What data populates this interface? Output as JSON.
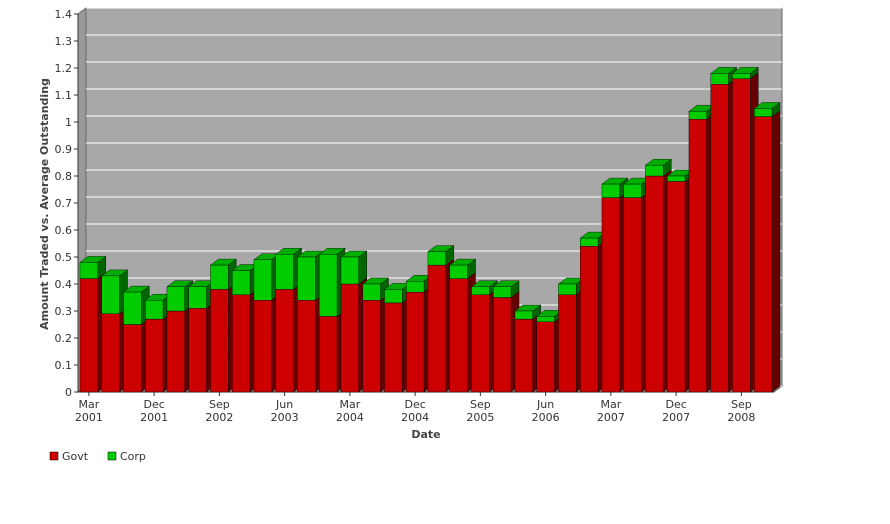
{
  "chart_data": {
    "type": "stacked_bar_3d",
    "x_label": "Date",
    "y_label": "Amount Traded vs. Average Outstanding",
    "categories": [
      [
        "Mar",
        "2001"
      ],
      null,
      null,
      [
        "Dec",
        "2001"
      ],
      null,
      null,
      [
        "Sep",
        "2002"
      ],
      null,
      null,
      [
        "Jun",
        "2003"
      ],
      null,
      null,
      [
        "Mar",
        "2004"
      ],
      null,
      null,
      [
        "Dec",
        "2004"
      ],
      null,
      null,
      [
        "Sep",
        "2005"
      ],
      null,
      null,
      [
        "Jun",
        "2006"
      ],
      null,
      null,
      [
        "Mar",
        "2007"
      ],
      null,
      null,
      [
        "Dec",
        "2007"
      ],
      null,
      null,
      [
        "Sep",
        "2008"
      ],
      null
    ],
    "series": [
      {
        "name": "Govt",
        "color": "#cc0000",
        "values": [
          0.42,
          0.29,
          0.25,
          0.27,
          0.3,
          0.31,
          0.38,
          0.36,
          0.34,
          0.38,
          0.34,
          0.28,
          0.4,
          0.34,
          0.33,
          0.37,
          0.47,
          0.42,
          0.36,
          0.35,
          0.27,
          0.26,
          0.36,
          0.54,
          0.72,
          0.72,
          0.8,
          0.78,
          1.01,
          1.14,
          1.16,
          1.02
        ]
      },
      {
        "name": "Corp",
        "color": "#00cc00",
        "values": [
          0.06,
          0.14,
          0.12,
          0.07,
          0.09,
          0.08,
          0.09,
          0.09,
          0.15,
          0.13,
          0.16,
          0.23,
          0.1,
          0.06,
          0.05,
          0.04,
          0.05,
          0.05,
          0.03,
          0.04,
          0.03,
          0.02,
          0.04,
          0.03,
          0.05,
          0.05,
          0.04,
          0.02,
          0.03,
          0.04,
          0.02,
          0.03
        ]
      }
    ],
    "ylim": [
      0,
      1.4
    ],
    "yticks": [
      0,
      0.1,
      0.2,
      0.3,
      0.4,
      0.5,
      0.6,
      0.7,
      0.8,
      0.9,
      1,
      1.1,
      1.2,
      1.3,
      1.4
    ],
    "grid": true,
    "legend": "bottom-left"
  }
}
